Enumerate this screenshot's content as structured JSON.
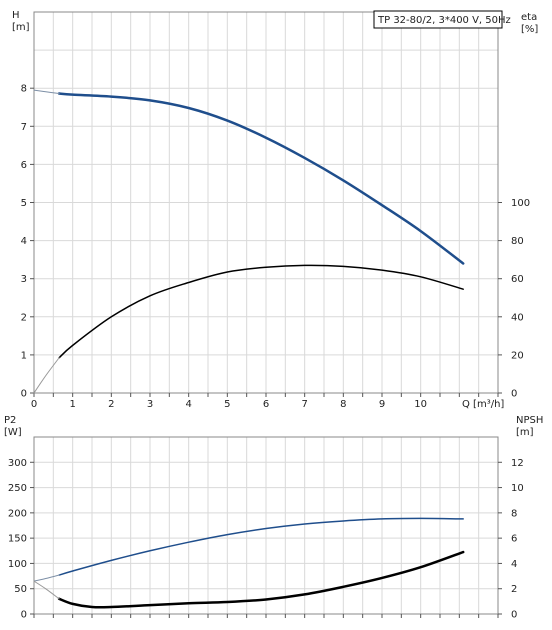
{
  "legend": "TP 32-80/2, 3*400 V, 50Hz",
  "chart_data": [
    {
      "name": "top",
      "type": "line",
      "xlabel": "Q [m³/h]",
      "ylabel_left": [
        "H",
        "[m]"
      ],
      "ylabel_right": [
        "eta",
        "[%]"
      ],
      "xlim": [
        0,
        12
      ],
      "ylim_left": [
        0,
        10
      ],
      "ylim_right": [
        0,
        200
      ],
      "xticks": [
        0,
        1,
        2,
        3,
        4,
        5,
        6,
        7,
        8,
        9,
        10
      ],
      "yticks_left": [
        0,
        1,
        2,
        3,
        4,
        5,
        6,
        7,
        8
      ],
      "yticks_right": [
        0,
        20,
        40,
        60,
        80,
        100
      ],
      "grid": true,
      "series": [
        {
          "axis": "left",
          "color": "#1f4e8c",
          "width": 2.5,
          "x": [
            0.65,
            1,
            2,
            3,
            4,
            5,
            6,
            7,
            8,
            9,
            10,
            11.1
          ],
          "y": [
            7.86,
            7.83,
            7.78,
            7.68,
            7.48,
            7.15,
            6.7,
            6.17,
            5.58,
            4.93,
            4.25,
            3.4
          ]
        },
        {
          "axis": "left",
          "color": "#7d8fa6",
          "width": 1,
          "x": [
            0,
            0.35,
            0.65
          ],
          "y": [
            7.95,
            7.9,
            7.86
          ]
        },
        {
          "axis": "right",
          "color": "#000000",
          "width": 1.5,
          "x": [
            0.65,
            1,
            2,
            3,
            4,
            5,
            6,
            7,
            8,
            9,
            10,
            11.1
          ],
          "y": [
            18.5,
            25,
            40,
            51,
            58,
            63.5,
            66,
            67,
            66.5,
            64.5,
            61,
            54.5
          ]
        },
        {
          "axis": "right",
          "color": "#999999",
          "width": 1,
          "x": [
            0,
            0.3,
            0.65
          ],
          "y": [
            0,
            9,
            18.5
          ]
        }
      ]
    },
    {
      "name": "bottom",
      "type": "line",
      "ylabel_left": [
        "P2",
        "[W]"
      ],
      "ylabel_right": [
        "NPSH",
        "[m]"
      ],
      "xlim": [
        0,
        12
      ],
      "ylim_left": [
        0,
        350
      ],
      "ylim_right": [
        0,
        14
      ],
      "yticks_left": [
        0,
        50,
        100,
        150,
        200,
        250,
        300
      ],
      "yticks_right": [
        0,
        2,
        4,
        6,
        8,
        10,
        12
      ],
      "grid": true,
      "series": [
        {
          "axis": "left",
          "color": "#1f4e8c",
          "width": 1.5,
          "x": [
            0.65,
            1,
            2,
            3,
            4,
            5,
            6,
            7,
            8,
            9,
            10,
            11.1
          ],
          "y": [
            77,
            85,
            106,
            125,
            142,
            157,
            169,
            178,
            184,
            188,
            189,
            188
          ]
        },
        {
          "axis": "left",
          "color": "#7d8fa6",
          "width": 1,
          "x": [
            0,
            0.35,
            0.65
          ],
          "y": [
            65,
            71,
            77
          ]
        },
        {
          "axis": "right",
          "color": "#000000",
          "width": 2.5,
          "x": [
            0.65,
            1,
            1.5,
            2,
            3,
            4,
            5,
            6,
            7,
            8,
            9,
            10,
            11.1
          ],
          "y": [
            1.2,
            0.8,
            0.55,
            0.55,
            0.7,
            0.85,
            0.95,
            1.15,
            1.55,
            2.15,
            2.85,
            3.7,
            4.9
          ]
        },
        {
          "axis": "right",
          "color": "#999999",
          "width": 1,
          "x": [
            0,
            0.3,
            0.65
          ],
          "y": [
            2.6,
            2,
            1.2
          ]
        }
      ]
    }
  ]
}
